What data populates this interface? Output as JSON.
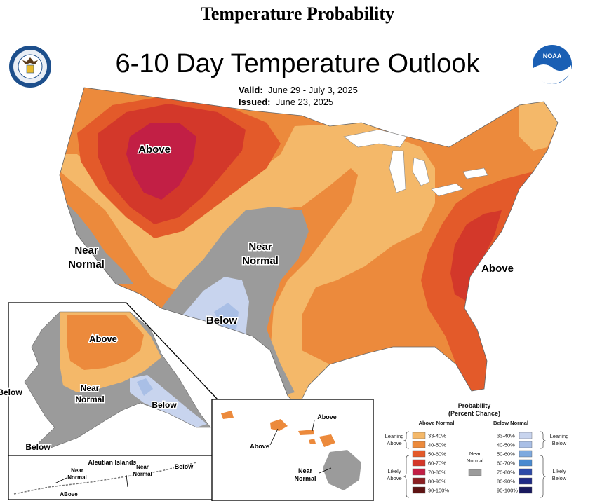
{
  "header": {
    "title": "Temperature Probability"
  },
  "map": {
    "title": "6-10 Day Temperature Outlook",
    "valid_label": "Valid:",
    "valid_value": "June 29 - July 3, 2025",
    "issued_label": "Issued:",
    "issued_value": "June 23, 2025"
  },
  "labels": {
    "above_west": "Above",
    "near_normal_west_1": "Near",
    "near_normal_west_2": "Normal",
    "near_normal_central_1": "Near",
    "near_normal_central_2": "Normal",
    "below_sw": "Below",
    "above_east": "Above",
    "alaska_above": "Above",
    "alaska_near_1": "Near",
    "alaska_near_2": "Normal",
    "alaska_below_se": "Below",
    "alaska_below_w": "Below",
    "alaska_below_sw": "Below",
    "aleutian_title": "Aleutian Islands",
    "aleutian_near1_1": "Near",
    "aleutian_near1_2": "Normal",
    "aleutian_near2_1": "Near",
    "aleutian_near2_2": "Normal",
    "aleutian_below": "Below",
    "aleutian_above": "ABove",
    "hawaii_above_1": "Above",
    "hawaii_above_2": "Above",
    "hawaii_near_1": "Near",
    "hawaii_near_2": "Normal"
  },
  "legend": {
    "title_1": "Probability",
    "title_2": "(Percent Chance)",
    "above_header": "Above Normal",
    "below_header": "Below Normal",
    "leaning_above_1": "Leaning",
    "leaning_above_2": "Above",
    "likely_above_1": "Likely",
    "likely_above_2": "Above",
    "leaning_below_1": "Leaning",
    "leaning_below_2": "Below",
    "likely_below_1": "Likely",
    "likely_below_2": "Below",
    "near_1": "Near",
    "near_2": "Normal",
    "above_rows": [
      {
        "range": "33-40%",
        "color": "#f4b869"
      },
      {
        "range": "40-50%",
        "color": "#ec8a3c"
      },
      {
        "range": "50-60%",
        "color": "#e35a2a"
      },
      {
        "range": "60-70%",
        "color": "#d3382a"
      },
      {
        "range": "70-80%",
        "color": "#c21f45"
      },
      {
        "range": "80-90%",
        "color": "#8b1f22"
      },
      {
        "range": "90-100%",
        "color": "#5e1414"
      }
    ],
    "below_rows": [
      {
        "range": "33-40%",
        "color": "#c8d4ee"
      },
      {
        "range": "40-50%",
        "color": "#a9bfe6"
      },
      {
        "range": "50-60%",
        "color": "#7ea9de"
      },
      {
        "range": "60-70%",
        "color": "#4a8ad0"
      },
      {
        "range": "70-80%",
        "color": "#2d4aa8"
      },
      {
        "range": "80-90%",
        "color": "#1f2a86"
      },
      {
        "range": "90-100%",
        "color": "#1a1a5e"
      }
    ],
    "near_color": "#9b9b9b"
  },
  "colors": {
    "lean_above": "#f4b869",
    "above_40_50": "#ec8a3c",
    "above_50_60": "#e35a2a",
    "above_60_70": "#d3382a",
    "above_70_80": "#c21f45",
    "near_normal": "#9b9b9b",
    "lean_below": "#c8d4ee",
    "below_40_50": "#a9bfe6"
  }
}
